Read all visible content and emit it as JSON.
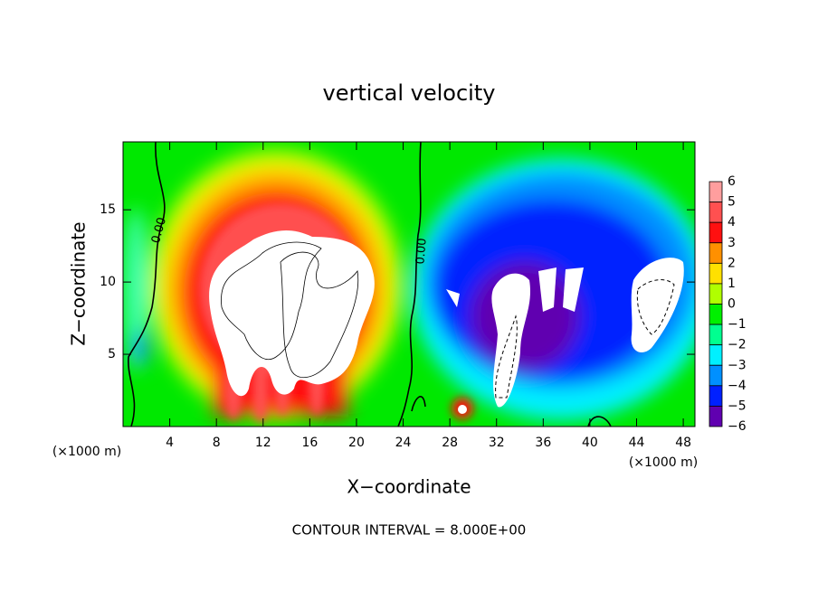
{
  "chart_data": {
    "type": "contour",
    "title": "vertical velocity",
    "xlabel": "X−coordinate",
    "ylabel": "Z−coordinate",
    "x_unit_left": "(×1000 m)",
    "x_unit_right": "(×1000 m)",
    "footer": "CONTOUR INTERVAL = 8.000E+00",
    "contour_labels": [
      "0.00",
      "0.00"
    ],
    "xlim": [
      0,
      49
    ],
    "xticks": [
      4,
      8,
      12,
      16,
      20,
      24,
      28,
      32,
      36,
      40,
      44,
      48
    ],
    "ylim": [
      0,
      19.7
    ],
    "yticks": [
      5,
      10,
      15
    ],
    "colorbar": {
      "levels": [
        6,
        5,
        4,
        3,
        2,
        1,
        0,
        {
          "value": -1,
          "label": "−1"
        },
        {
          "value": -2,
          "label": "−2"
        },
        {
          "value": -3,
          "label": "−3"
        },
        {
          "value": -4,
          "label": "−4"
        },
        {
          "value": -5,
          "label": "−5"
        },
        {
          "value": -6,
          "label": "−6"
        }
      ],
      "colors": [
        "#ff9e9e",
        "#ff5050",
        "#ff1010",
        "#ff9000",
        "#ffe000",
        "#b0ff00",
        "#00f000",
        "#00ff90",
        "#00f0ff",
        "#0090ff",
        "#0020ff",
        "#6000b0"
      ]
    }
  }
}
